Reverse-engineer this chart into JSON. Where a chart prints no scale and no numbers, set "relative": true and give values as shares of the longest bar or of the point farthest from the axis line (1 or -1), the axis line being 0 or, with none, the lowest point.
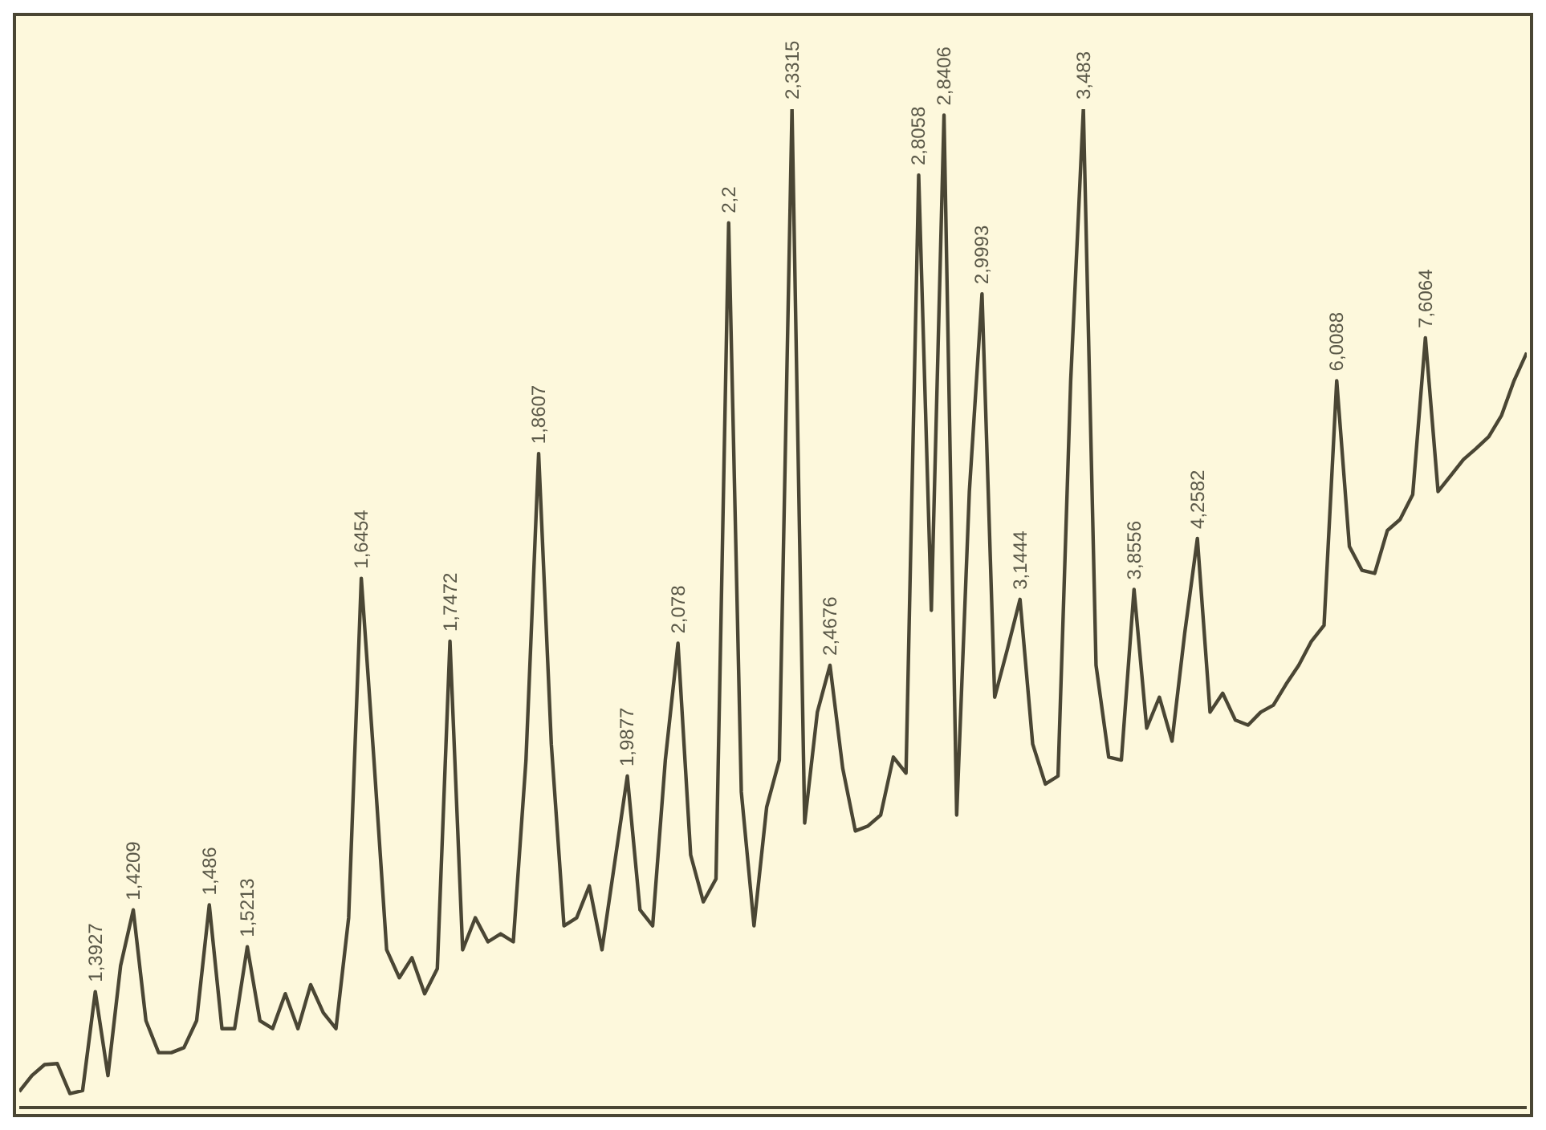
{
  "chart_data": {
    "type": "line",
    "relative": true,
    "categories": [
      null,
      null,
      null,
      null,
      null,
      null,
      null,
      null,
      null,
      null,
      null,
      null,
      null,
      null,
      null,
      null,
      null,
      null,
      null,
      null,
      null,
      null,
      null,
      null,
      null,
      null,
      null,
      null,
      null,
      null,
      null,
      null,
      null,
      null,
      null,
      null,
      null,
      null,
      null,
      null,
      null,
      null,
      null,
      null,
      null,
      null,
      null,
      null,
      null,
      null,
      null,
      null,
      null,
      null,
      null,
      null,
      null,
      null,
      null,
      null,
      null,
      null,
      null,
      null,
      null,
      null,
      null,
      null,
      null,
      null,
      null,
      null,
      null,
      null,
      null,
      null,
      null,
      null,
      null,
      null,
      null,
      null,
      null,
      null,
      null,
      null,
      null,
      null,
      null,
      null,
      null,
      null,
      null,
      null,
      null,
      null,
      null,
      null,
      null,
      null,
      null,
      null,
      null,
      null,
      null,
      null,
      null,
      null,
      null,
      null,
      null,
      null,
      null,
      null,
      null,
      null,
      null,
      null,
      null,
      null
    ],
    "series": [
      {
        "color": "#4a4634",
        "values": [
          0.016,
          0.032,
          0.043,
          0.044,
          0.014,
          0.017,
          0.116,
          0.032,
          0.142,
          0.198,
          0.087,
          0.055,
          0.055,
          0.06,
          0.087,
          0.203,
          0.079,
          0.079,
          0.161,
          0.087,
          0.079,
          0.114,
          0.079,
          0.123,
          0.095,
          0.079,
          0.19,
          0.53,
          0.348,
          0.158,
          0.13,
          0.15,
          0.114,
          0.139,
          0.467,
          0.158,
          0.19,
          0.166,
          0.174,
          0.166,
          0.348,
          0.655,
          0.364,
          0.182,
          0.19,
          0.222,
          0.158,
          0.245,
          0.332,
          0.198,
          0.182,
          0.348,
          0.465,
          0.253,
          0.206,
          0.229,
          0.886,
          0.316,
          0.182,
          0.301,
          0.348,
          1.0,
          0.285,
          0.396,
          0.443,
          0.34,
          0.277,
          0.282,
          0.293,
          0.351,
          0.335,
          0.934,
          0.498,
          0.994,
          0.293,
          0.617,
          0.815,
          0.411,
          0.459,
          0.509,
          0.364,
          0.324,
          0.332,
          0.728,
          1.0,
          0.443,
          0.351,
          0.348,
          0.519,
          0.38,
          0.411,
          0.367,
          0.475,
          0.57,
          0.396,
          0.415,
          0.388,
          0.383,
          0.396,
          0.403,
          0.424,
          0.443,
          0.467,
          0.483,
          0.728,
          0.562,
          0.538,
          0.535,
          0.578,
          0.589,
          0.614,
          0.771,
          0.617,
          0.633,
          0.649,
          0.66,
          0.672,
          0.693,
          0.728,
          0.756
        ]
      }
    ],
    "annotations": [
      {
        "text": "1,3927",
        "y": 0.116
      },
      {
        "text": "1,4209",
        "y": 0.198
      },
      {
        "text": "1,486",
        "y": 0.203
      },
      {
        "text": "1,5213",
        "y": 0.161
      },
      {
        "text": "1,6454",
        "y": 0.53
      },
      {
        "text": "1,7472",
        "y": 0.467
      },
      {
        "text": "1,8607",
        "y": 0.655
      },
      {
        "text": "1,9877",
        "y": 0.332
      },
      {
        "text": "2,078",
        "y": 0.465
      },
      {
        "text": "2,2",
        "y": 0.886
      },
      {
        "text": "2,3315",
        "y": 1.0
      },
      {
        "text": "2,4676",
        "y": 0.443
      },
      {
        "text": "2,8058",
        "y": 0.934
      },
      {
        "text": "2,8406",
        "y": 0.994
      },
      {
        "text": "2,9993",
        "y": 0.815
      },
      {
        "text": "3,1444",
        "y": 0.509
      },
      {
        "text": "3,483",
        "y": 1.0
      },
      {
        "text": "3,8556",
        "y": 0.519
      },
      {
        "text": "4,2582",
        "y": 0.57
      },
      {
        "text": "6,0088",
        "y": 0.728
      },
      {
        "text": "7,6064",
        "y": 0.771
      }
    ]
  }
}
